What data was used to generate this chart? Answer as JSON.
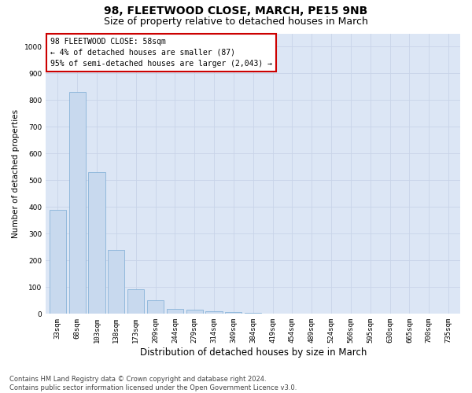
{
  "title": "98, FLEETWOOD CLOSE, MARCH, PE15 9NB",
  "subtitle": "Size of property relative to detached houses in March",
  "xlabel": "Distribution of detached houses by size in March",
  "ylabel": "Number of detached properties",
  "categories": [
    "33sqm",
    "68sqm",
    "103sqm",
    "138sqm",
    "173sqm",
    "209sqm",
    "244sqm",
    "279sqm",
    "314sqm",
    "349sqm",
    "384sqm",
    "419sqm",
    "454sqm",
    "489sqm",
    "524sqm",
    "560sqm",
    "595sqm",
    "630sqm",
    "665sqm",
    "700sqm",
    "735sqm"
  ],
  "values": [
    390,
    830,
    530,
    240,
    93,
    50,
    18,
    15,
    10,
    7,
    5,
    0,
    0,
    0,
    0,
    0,
    0,
    0,
    0,
    0,
    0
  ],
  "bar_color": "#c8d9ee",
  "bar_edge_color": "#7aaad4",
  "annotation_box_text": "98 FLEETWOOD CLOSE: 58sqm\n← 4% of detached houses are smaller (87)\n95% of semi-detached houses are larger (2,043) →",
  "annotation_box_color": "#ffffff",
  "annotation_box_edge_color": "#cc0000",
  "ylim": [
    0,
    1050
  ],
  "yticks": [
    0,
    100,
    200,
    300,
    400,
    500,
    600,
    700,
    800,
    900,
    1000
  ],
  "grid_color": "#c8d4e8",
  "bg_color": "#dce6f5",
  "footnote": "Contains HM Land Registry data © Crown copyright and database right 2024.\nContains public sector information licensed under the Open Government Licence v3.0.",
  "title_fontsize": 10,
  "subtitle_fontsize": 9,
  "xlabel_fontsize": 8.5,
  "ylabel_fontsize": 7.5,
  "tick_fontsize": 6.5,
  "annotation_fontsize": 7,
  "footnote_fontsize": 6
}
